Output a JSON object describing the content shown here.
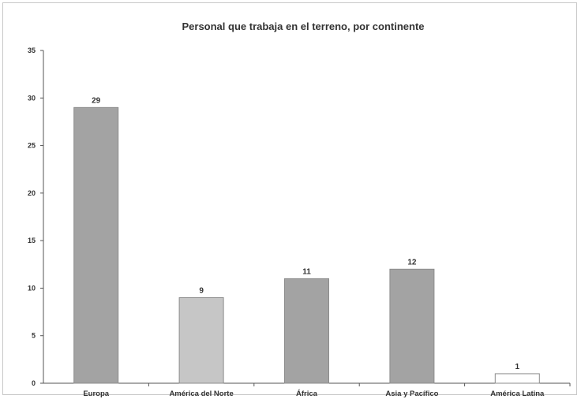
{
  "chart_data": {
    "type": "bar",
    "title": "Personal que trabaja en el terreno, por continente",
    "xlabel": "",
    "ylabel": "",
    "categories": [
      "Europa",
      "América del Norte",
      "África",
      "Asia y Pacífico",
      "América Latina"
    ],
    "values": [
      29,
      9,
      11,
      12,
      1
    ],
    "data_labels": [
      "29",
      "9",
      "11",
      "12",
      "1"
    ],
    "ylim": [
      0,
      35
    ],
    "y_ticks": [
      "0",
      "5",
      "10",
      "15",
      "20",
      "25",
      "30",
      "35"
    ],
    "grid": false,
    "legend": "none",
    "colors": {
      "bars": [
        "#a3a3a3",
        "#c6c6c6",
        "#a3a3a3",
        "#a3a3a3",
        "#ffffff"
      ],
      "bar_outline": "#8c8c8c",
      "axis": "#555555",
      "text": "#333333"
    }
  }
}
